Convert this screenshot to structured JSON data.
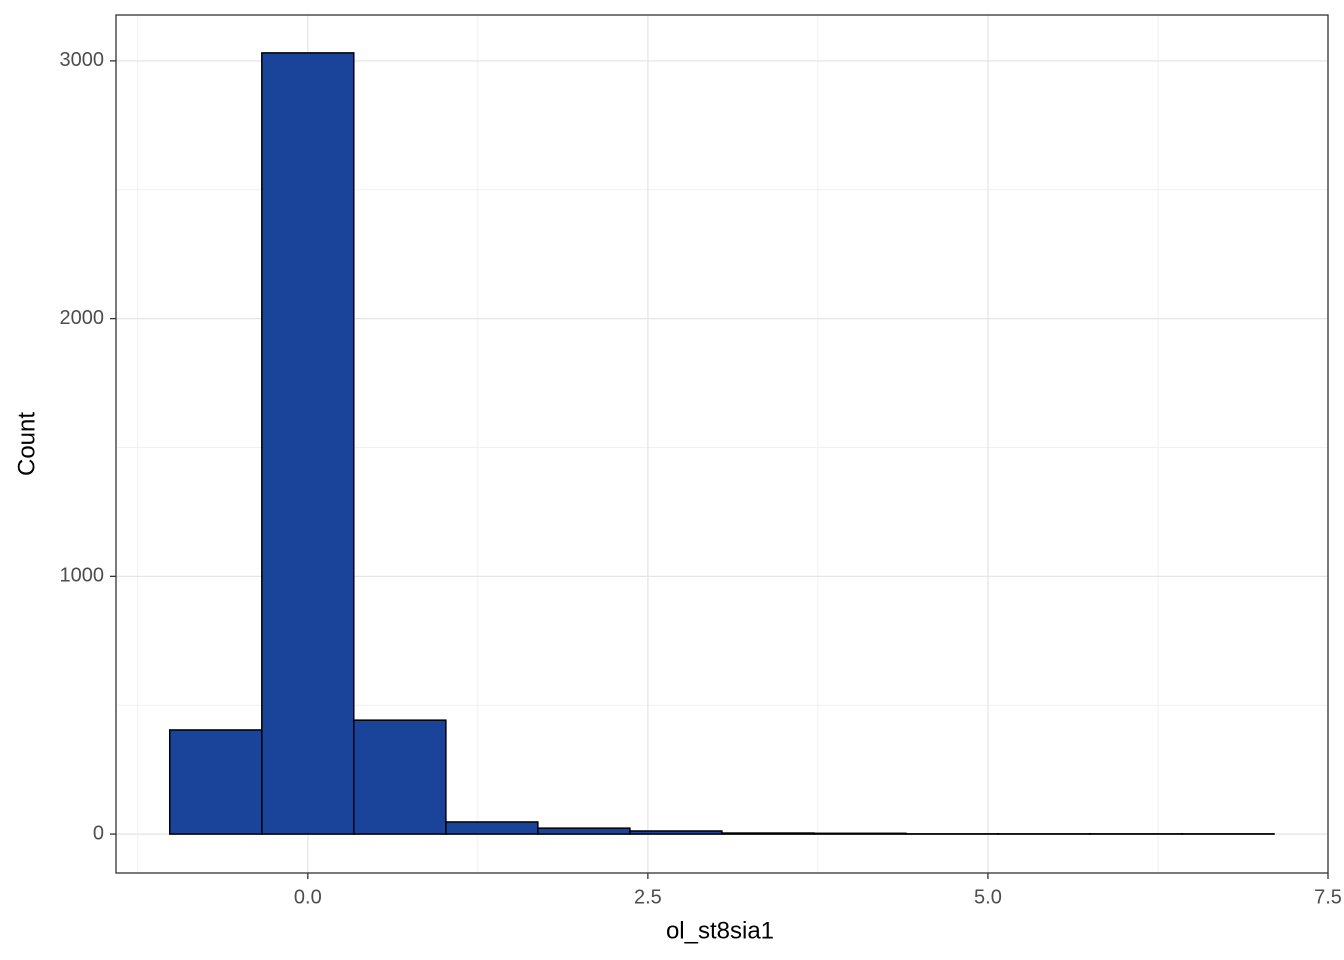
{
  "chart_data": {
    "type": "histogram",
    "x_label": "ol_st8sia1",
    "y_label": "Count",
    "bins": [
      -1.015,
      -0.338,
      0.338,
      1.015,
      1.691,
      2.368,
      3.044,
      3.721,
      4.397,
      5.074,
      5.75,
      6.427,
      7.103
    ],
    "values": [
      404,
      3031,
      442,
      47,
      23,
      12,
      4,
      3,
      1,
      1,
      1,
      1
    ],
    "color": "#19449a",
    "edge_color": "#000000",
    "xlim": [
      -1.41,
      7.5
    ],
    "ylim": [
      -151,
      3178
    ],
    "xticks": [
      {
        "value": 0,
        "label": "0.0"
      },
      2.5,
      {
        "value": 5,
        "label": "5.0"
      },
      7.5
    ],
    "yticks": [
      0,
      1000,
      2000,
      3000
    ],
    "grid": true
  }
}
